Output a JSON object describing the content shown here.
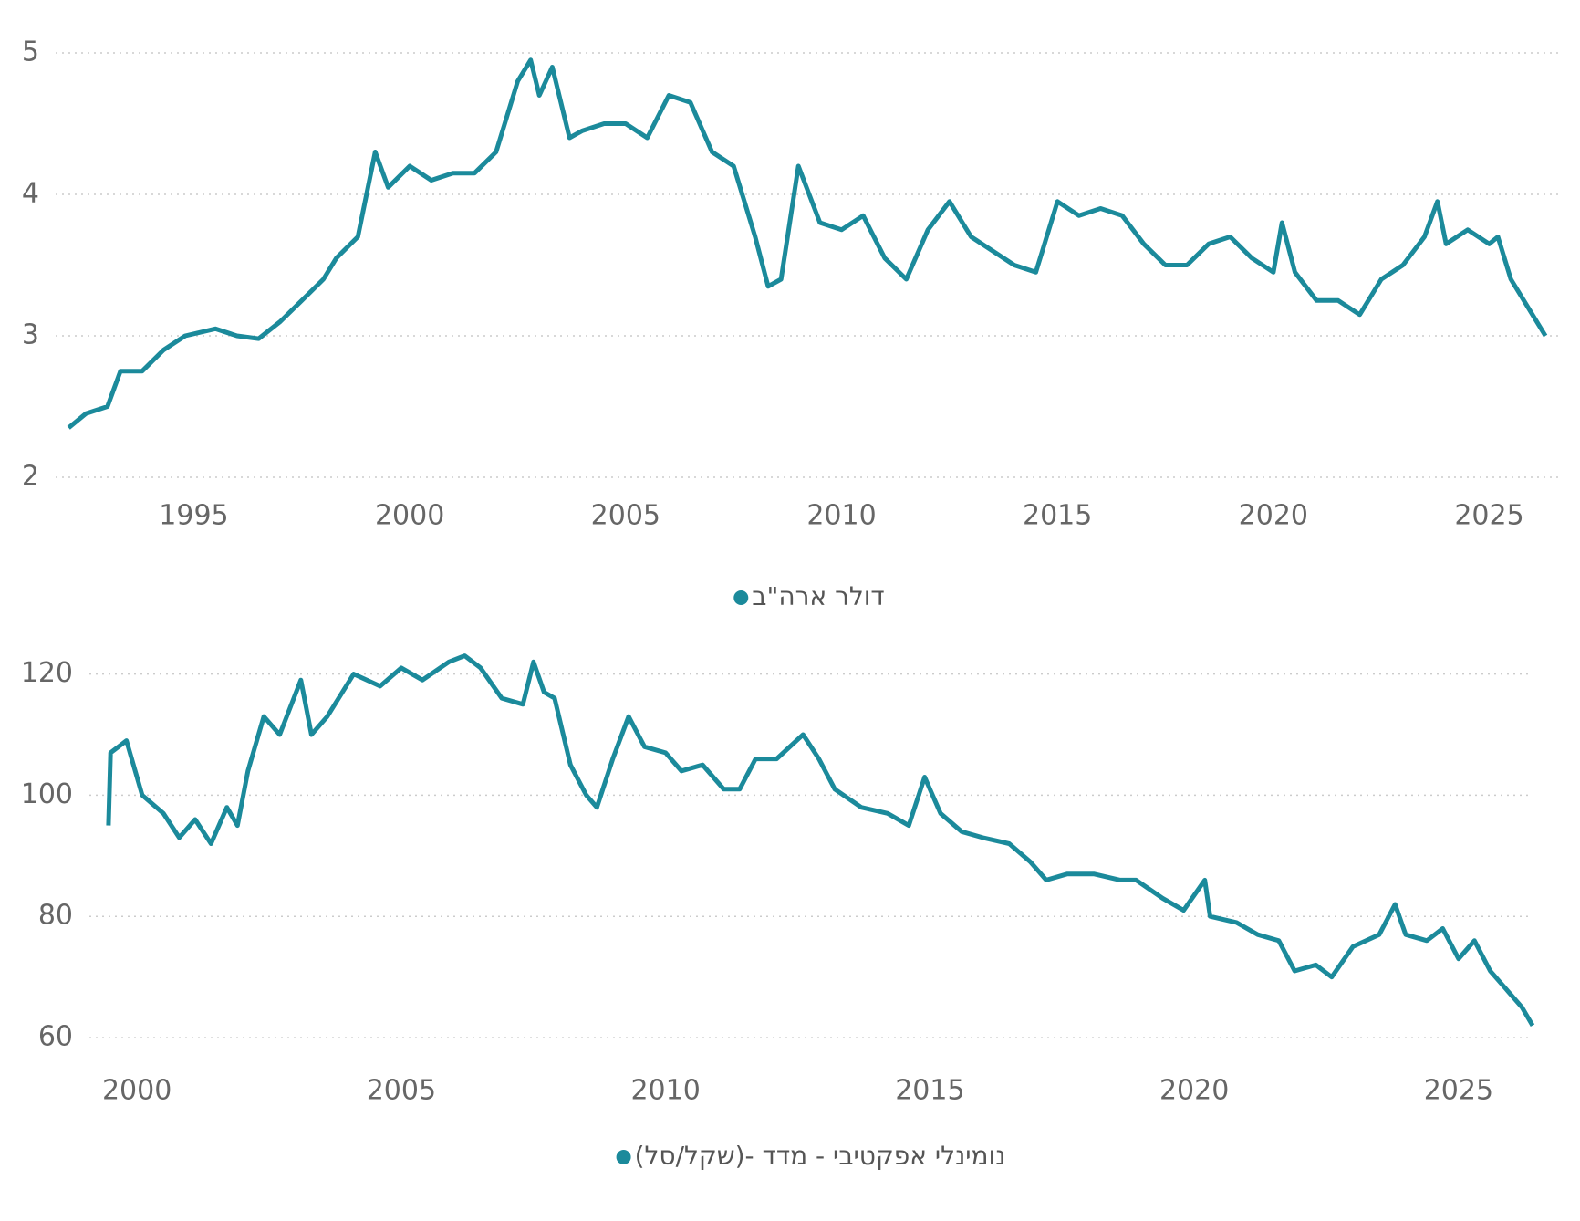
{
  "chart_data": [
    {
      "type": "line",
      "xlim": [
        1991.8,
        2026.7
      ],
      "xticks": [
        1995,
        2000,
        2005,
        2010,
        2015,
        2020,
        2025
      ],
      "ylim": [
        2,
        5
      ],
      "yticks": [
        2,
        3,
        4,
        5
      ],
      "grid": true,
      "x": [
        1992.1,
        1992.5,
        1993,
        1993.3,
        1993.8,
        1994.3,
        1994.8,
        1995.5,
        1996,
        1996.5,
        1997,
        1997.5,
        1998,
        1998.3,
        1998.8,
        1999.2,
        1999.5,
        2000,
        2000.5,
        2001,
        2001.5,
        2002,
        2002.5,
        2002.8,
        2003,
        2003.3,
        2003.7,
        2004,
        2004.5,
        2005,
        2005.5,
        2006,
        2006.5,
        2007,
        2007.5,
        2008,
        2008.3,
        2008.6,
        2009,
        2009.5,
        2010,
        2010.5,
        2011,
        2011.5,
        2012,
        2012.5,
        2013,
        2013.5,
        2014,
        2014.5,
        2015,
        2015.5,
        2016,
        2016.5,
        2017,
        2017.5,
        2018,
        2018.5,
        2019,
        2019.5,
        2020,
        2020.2,
        2020.5,
        2021,
        2021.5,
        2022,
        2022.5,
        2023,
        2023.5,
        2023.8,
        2024,
        2024.5,
        2025,
        2025.2,
        2025.5,
        2026,
        2026.3
      ],
      "series": [
        {
          "name": "דולר ארה\"ב",
          "color": "#1b8a9b",
          "values": [
            2.35,
            2.45,
            2.5,
            2.75,
            2.75,
            2.9,
            3.0,
            3.05,
            3.0,
            2.98,
            3.1,
            3.25,
            3.4,
            3.55,
            3.7,
            4.3,
            4.05,
            4.2,
            4.1,
            4.15,
            4.15,
            4.3,
            4.8,
            4.95,
            4.7,
            4.9,
            4.4,
            4.45,
            4.5,
            4.5,
            4.4,
            4.7,
            4.65,
            4.3,
            4.2,
            3.7,
            3.35,
            3.4,
            4.2,
            3.8,
            3.75,
            3.85,
            3.55,
            3.4,
            3.75,
            3.95,
            3.7,
            3.6,
            3.5,
            3.45,
            3.95,
            3.85,
            3.9,
            3.85,
            3.65,
            3.5,
            3.5,
            3.65,
            3.7,
            3.55,
            3.45,
            3.8,
            3.45,
            3.25,
            3.25,
            3.15,
            3.4,
            3.5,
            3.7,
            3.95,
            3.65,
            3.75,
            3.65,
            3.7,
            3.4,
            3.15,
            3.0
          ]
        }
      ]
    },
    {
      "type": "line",
      "xlim": [
        1999.1,
        2026.4
      ],
      "xticks": [
        2000,
        2005,
        2010,
        2015,
        2020,
        2025
      ],
      "ylim": [
        57,
        124
      ],
      "yticks": [
        60,
        80,
        100,
        120
      ],
      "grid": true,
      "x": [
        1999.46,
        1999.5,
        1999.8,
        2000.1,
        2000.5,
        2000.8,
        2001.1,
        2001.4,
        2001.7,
        2001.9,
        2002.1,
        2002.4,
        2002.7,
        2003.1,
        2003.3,
        2003.6,
        2004.1,
        2004.6,
        2005,
        2005.4,
        2005.9,
        2006.2,
        2006.5,
        2006.9,
        2007.3,
        2007.5,
        2007.7,
        2007.9,
        2008.2,
        2008.5,
        2008.7,
        2009,
        2009.3,
        2009.6,
        2010,
        2010.3,
        2010.7,
        2011.1,
        2011.4,
        2011.7,
        2012.1,
        2012.6,
        2012.9,
        2013.2,
        2013.7,
        2014.2,
        2014.6,
        2014.9,
        2015.2,
        2015.6,
        2016,
        2016.5,
        2016.9,
        2017.2,
        2017.6,
        2018.1,
        2018.6,
        2018.9,
        2019.4,
        2019.8,
        2020.2,
        2020.3,
        2020.8,
        2021.2,
        2021.6,
        2021.9,
        2022.3,
        2022.6,
        2023,
        2023.5,
        2023.8,
        2024,
        2024.4,
        2024.7,
        2025,
        2025.3,
        2025.6,
        2025.9,
        2026.2,
        2026.4
      ],
      "series": [
        {
          "name": "נומינלי אפקטיבי - מדד -(שקל/סל)",
          "color": "#1b8a9b",
          "values": [
            95,
            107,
            109,
            100,
            97,
            93,
            96,
            92,
            98,
            95,
            104,
            113,
            110,
            119,
            110,
            113,
            120,
            118,
            121,
            119,
            122,
            123,
            121,
            116,
            115,
            122,
            117,
            116,
            105,
            100,
            98,
            106,
            113,
            108,
            107,
            104,
            105,
            101,
            101,
            106,
            106,
            110,
            106,
            101,
            98,
            97,
            95,
            103,
            97,
            94,
            93,
            92,
            89,
            86,
            87,
            87,
            86,
            86,
            83,
            81,
            86,
            80,
            79,
            77,
            76,
            71,
            72,
            70,
            75,
            77,
            82,
            77,
            76,
            78,
            73,
            76,
            71,
            68,
            65,
            62
          ]
        }
      ]
    }
  ]
}
